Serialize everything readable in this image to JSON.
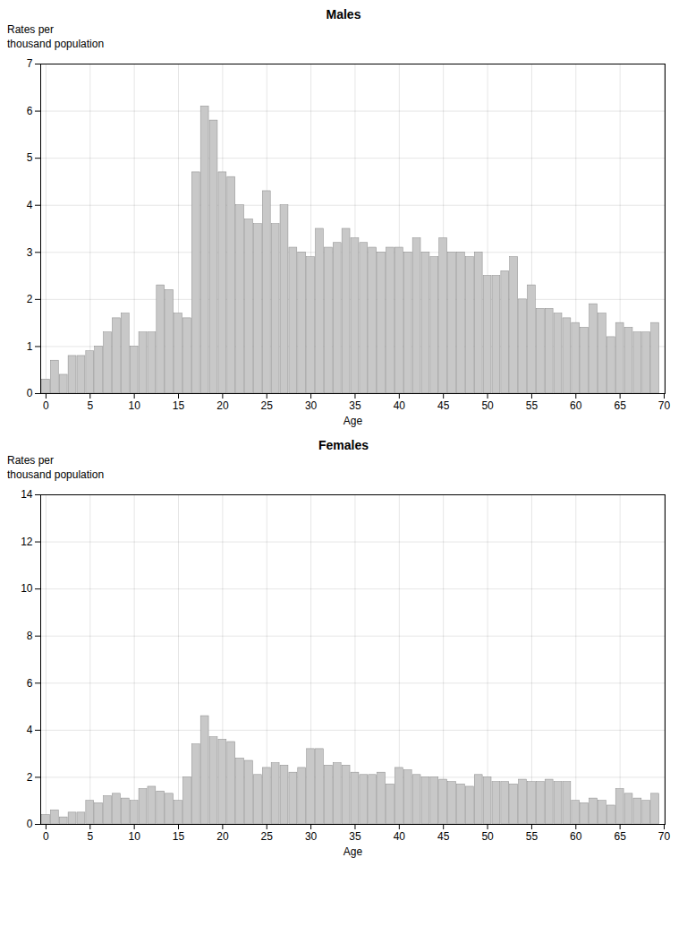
{
  "chart_data": [
    {
      "type": "bar",
      "title": "Males",
      "xlabel": "Age",
      "ylabel": "Rates per\nthousand population",
      "x": [
        0,
        1,
        2,
        3,
        4,
        5,
        6,
        7,
        8,
        9,
        10,
        11,
        12,
        13,
        14,
        15,
        16,
        17,
        18,
        19,
        20,
        21,
        22,
        23,
        24,
        25,
        26,
        27,
        28,
        29,
        30,
        31,
        32,
        33,
        34,
        35,
        36,
        37,
        38,
        39,
        40,
        41,
        42,
        43,
        44,
        45,
        46,
        47,
        48,
        49,
        50,
        51,
        52,
        53,
        54,
        55,
        56,
        57,
        58,
        59,
        60,
        61,
        62,
        63,
        64,
        65,
        66,
        67,
        68,
        69
      ],
      "values": [
        0.3,
        0.7,
        0.4,
        0.8,
        0.8,
        0.9,
        1.0,
        1.3,
        1.6,
        1.7,
        1.0,
        1.3,
        1.3,
        2.3,
        2.2,
        1.7,
        1.6,
        4.7,
        6.1,
        5.8,
        4.7,
        4.6,
        4.0,
        3.7,
        3.6,
        4.3,
        3.6,
        4.0,
        3.1,
        3.0,
        2.9,
        3.5,
        3.1,
        3.2,
        3.5,
        3.3,
        3.2,
        3.1,
        3.0,
        3.1,
        3.1,
        3.0,
        3.3,
        3.0,
        2.9,
        3.3,
        3.0,
        3.0,
        2.9,
        3.0,
        2.5,
        2.5,
        2.6,
        2.9,
        2.0,
        2.3,
        1.8,
        1.8,
        1.7,
        1.6,
        1.5,
        1.4,
        1.9,
        1.7,
        1.2,
        1.5,
        1.4,
        1.3,
        1.3,
        1.5
      ],
      "color": "#c8c8c8",
      "xlim": [
        -0.6,
        70.1
      ],
      "xticks": [
        0,
        5,
        10,
        15,
        20,
        25,
        30,
        35,
        40,
        45,
        50,
        55,
        60,
        65,
        70
      ],
      "ylim": [
        0,
        7
      ],
      "yticks": [
        0,
        1,
        2,
        3,
        4,
        5,
        6,
        7
      ],
      "grid": true
    },
    {
      "type": "bar",
      "title": "Females",
      "xlabel": "Age",
      "ylabel": "Rates per\nthousand population",
      "x": [
        0,
        1,
        2,
        3,
        4,
        5,
        6,
        7,
        8,
        9,
        10,
        11,
        12,
        13,
        14,
        15,
        16,
        17,
        18,
        19,
        20,
        21,
        22,
        23,
        24,
        25,
        26,
        27,
        28,
        29,
        30,
        31,
        32,
        33,
        34,
        35,
        36,
        37,
        38,
        39,
        40,
        41,
        42,
        43,
        44,
        45,
        46,
        47,
        48,
        49,
        50,
        51,
        52,
        53,
        54,
        55,
        56,
        57,
        58,
        59,
        60,
        61,
        62,
        63,
        64,
        65,
        66,
        67,
        68,
        69
      ],
      "values": [
        0.4,
        0.6,
        0.3,
        0.5,
        0.5,
        1.0,
        0.9,
        1.2,
        1.3,
        1.1,
        1.0,
        1.5,
        1.6,
        1.4,
        1.3,
        1.0,
        2.0,
        3.4,
        4.6,
        3.7,
        3.6,
        3.5,
        2.8,
        2.7,
        2.1,
        2.4,
        2.6,
        2.5,
        2.2,
        2.4,
        3.2,
        3.2,
        2.5,
        2.6,
        2.5,
        2.2,
        2.1,
        2.1,
        2.2,
        1.7,
        2.4,
        2.3,
        2.1,
        2.0,
        2.0,
        1.9,
        1.8,
        1.7,
        1.6,
        2.1,
        2.0,
        1.8,
        1.8,
        1.7,
        1.9,
        1.8,
        1.8,
        1.9,
        1.8,
        1.8,
        1.0,
        0.9,
        1.1,
        1.0,
        0.8,
        1.5,
        1.3,
        1.1,
        1.0,
        1.3
      ],
      "color": "#c8c8c8",
      "xlim": [
        -0.6,
        70.1
      ],
      "xticks": [
        0,
        5,
        10,
        15,
        20,
        25,
        30,
        35,
        40,
        45,
        50,
        55,
        60,
        65,
        70
      ],
      "ylim": [
        0,
        14
      ],
      "yticks": [
        0,
        2,
        4,
        6,
        8,
        10,
        12,
        14
      ],
      "grid": true
    }
  ]
}
